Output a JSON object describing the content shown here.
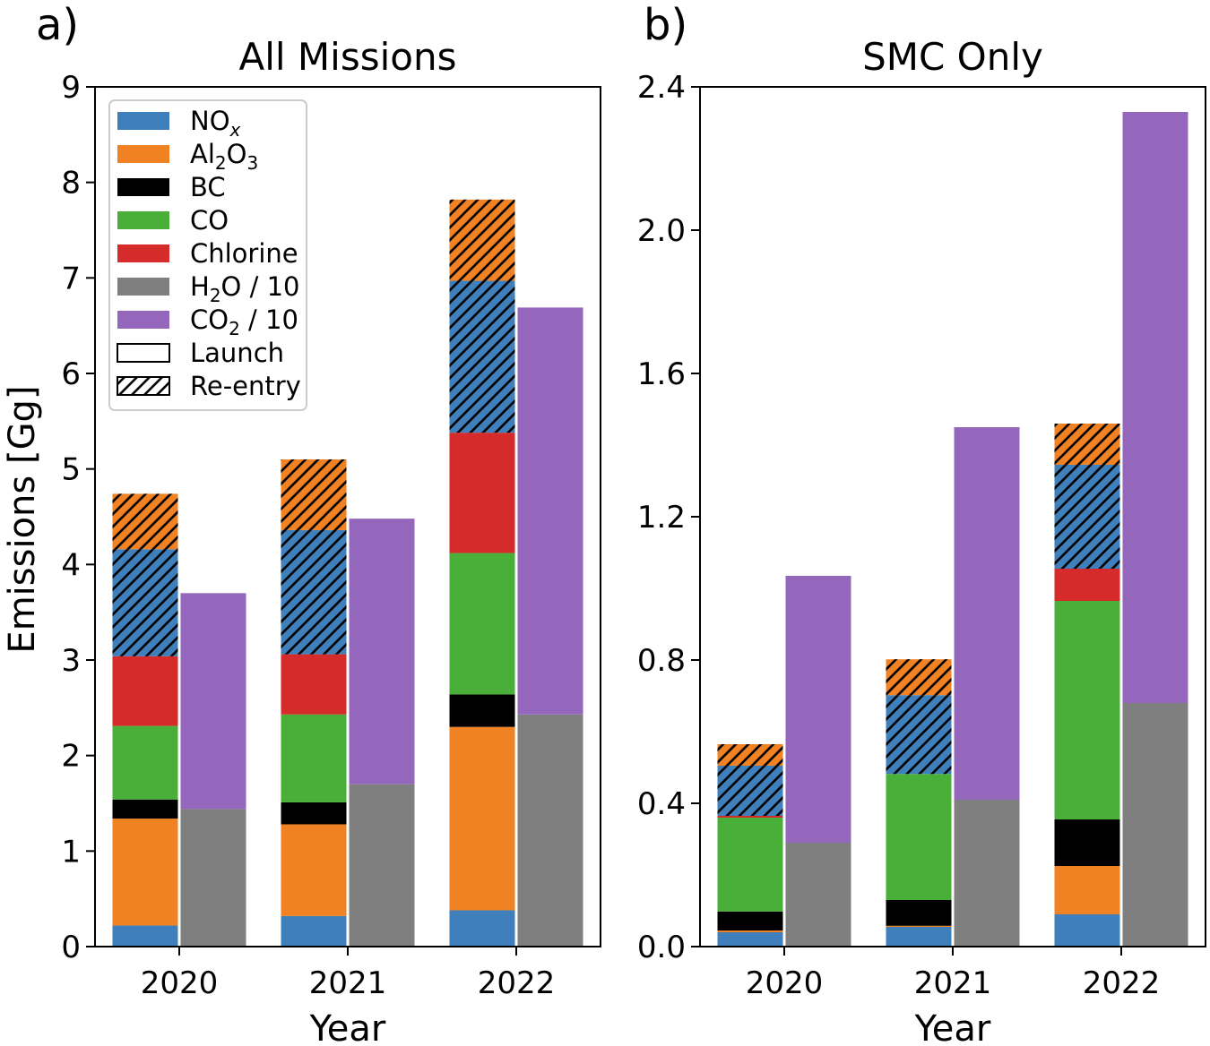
{
  "chart_data": [
    {
      "type": "bar",
      "subtype": "stacked-grouped",
      "panel_label": "a)",
      "title": "All Missions",
      "xlabel": "Year",
      "ylabel": "Emissions [Gg]",
      "ylim": [
        0,
        9
      ],
      "yticks": [
        "0",
        "1",
        "2",
        "3",
        "4",
        "5",
        "6",
        "7",
        "8",
        "9"
      ],
      "categories": [
        "2020",
        "2021",
        "2022"
      ],
      "launch_stack": [
        {
          "species": "NOx",
          "values": [
            0.22,
            0.32,
            0.38
          ]
        },
        {
          "species": "Al2O3",
          "values": [
            1.12,
            0.96,
            1.92
          ]
        },
        {
          "species": "BC",
          "values": [
            0.2,
            0.23,
            0.34
          ]
        },
        {
          "species": "CO",
          "values": [
            0.77,
            0.92,
            1.48
          ]
        },
        {
          "species": "Chlorine",
          "values": [
            0.73,
            0.63,
            1.26
          ]
        }
      ],
      "reentry_stack": [
        {
          "species": "NOx",
          "values": [
            1.12,
            1.3,
            1.59
          ]
        },
        {
          "species": "Al2O3",
          "values": [
            0.58,
            0.74,
            0.85
          ]
        }
      ],
      "gas_stack": [
        {
          "species": "H2O / 10",
          "values": [
            1.44,
            1.7,
            2.43
          ]
        },
        {
          "species": "CO2 / 10",
          "values": [
            2.26,
            2.78,
            4.26
          ]
        }
      ]
    },
    {
      "type": "bar",
      "subtype": "stacked-grouped",
      "panel_label": "b)",
      "title": "SMC Only",
      "xlabel": "Year",
      "ylabel": "",
      "ylim": [
        0,
        2.4
      ],
      "yticks": [
        "0.0",
        "0.4",
        "0.8",
        "1.2",
        "1.6",
        "2.0",
        "2.4"
      ],
      "categories": [
        "2020",
        "2021",
        "2022"
      ],
      "launch_stack": [
        {
          "species": "NOx",
          "values": [
            0.04,
            0.055,
            0.09
          ]
        },
        {
          "species": "Al2O3",
          "values": [
            0.005,
            0.003,
            0.135
          ]
        },
        {
          "species": "BC",
          "values": [
            0.053,
            0.072,
            0.13
          ]
        },
        {
          "species": "CO",
          "values": [
            0.262,
            0.352,
            0.61
          ]
        },
        {
          "species": "Chlorine",
          "values": [
            0.005,
            0.0,
            0.09
          ]
        }
      ],
      "reentry_stack": [
        {
          "species": "NOx",
          "values": [
            0.14,
            0.22,
            0.29
          ]
        },
        {
          "species": "Al2O3",
          "values": [
            0.06,
            0.1,
            0.115
          ]
        }
      ],
      "gas_stack": [
        {
          "species": "H2O / 10",
          "values": [
            0.29,
            0.41,
            0.68
          ]
        },
        {
          "species": "CO2 / 10",
          "values": [
            0.745,
            1.04,
            1.65
          ]
        }
      ]
    }
  ],
  "colors": {
    "NOx": "#3f7fbb",
    "Al2O3": "#f08224",
    "BC": "#000000",
    "CO": "#4aaf38",
    "Chlorine": "#d62b2b",
    "H2O / 10": "#7f7f7f",
    "CO2 / 10": "#9467bd"
  },
  "legend": {
    "location": "upper-left",
    "items": [
      {
        "key": "NOx",
        "main": "NO",
        "sub": "x",
        "subtype": "italic"
      },
      {
        "key": "Al2O3",
        "parts": [
          "Al",
          "2",
          "O",
          "3"
        ]
      },
      {
        "key": "BC",
        "main": "BC"
      },
      {
        "key": "CO",
        "main": "CO"
      },
      {
        "key": "Chlorine",
        "main": "Chlorine"
      },
      {
        "key": "H2O / 10",
        "parts": [
          "H",
          "2",
          "O / 10"
        ]
      },
      {
        "key": "CO2 / 10",
        "parts": [
          "CO",
          "2",
          " / 10"
        ]
      },
      {
        "key": "Launch",
        "main": "Launch",
        "style": "outline"
      },
      {
        "key": "Re-entry",
        "main": "Re-entry",
        "style": "hatch"
      }
    ]
  }
}
